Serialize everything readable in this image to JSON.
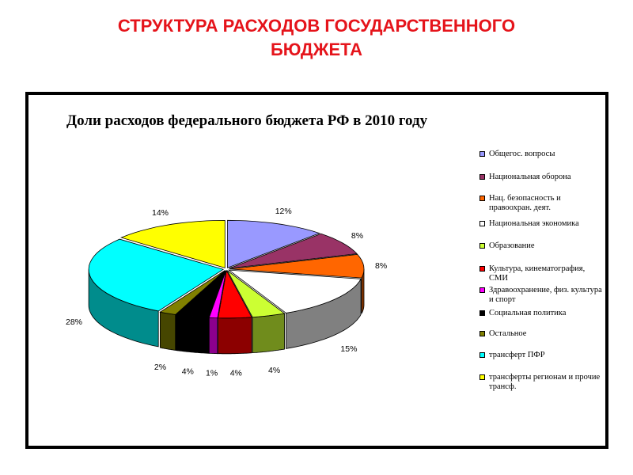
{
  "slide": {
    "title_line1": "СТРУКТУРА РАСХОДОВ ГОСУДАРСТВЕННОГО",
    "title_line2": "БЮДЖЕТА",
    "title_color": "#e5141b"
  },
  "chart_data": {
    "type": "pie",
    "style": "3d-exploded",
    "title": "Доли расходов федерального бюджета РФ в 2010 году",
    "legend_position": "right",
    "unit": "%",
    "slices": [
      {
        "label": "Общегос. вопросы",
        "value": 12,
        "color": "#9999ff"
      },
      {
        "label": "Национальная оборона",
        "value": 8,
        "color": "#993366"
      },
      {
        "label": "Нац. безопасность и правоохран. деят.",
        "value": 8,
        "color": "#ff6600"
      },
      {
        "label": "Национальная экономика",
        "value": 15,
        "color": "#ffffff"
      },
      {
        "label": "Образование",
        "value": 4,
        "color": "#ccff33"
      },
      {
        "label": "Культура, кинематография, СМИ",
        "value": 4,
        "color": "#ff0000"
      },
      {
        "label": "Здравоохранение, физ. культура и спорт",
        "value": 1,
        "color": "#ff00ff"
      },
      {
        "label": "Социальная политика",
        "value": 4,
        "color": "#000000"
      },
      {
        "label": "Остальное",
        "value": 2,
        "color": "#808000"
      },
      {
        "label": "трансферт ПФР",
        "value": 28,
        "color": "#00ffff"
      },
      {
        "label": "трансферты регионам и прочие трансф.",
        "value": 14,
        "color": "#ffff00"
      }
    ]
  }
}
